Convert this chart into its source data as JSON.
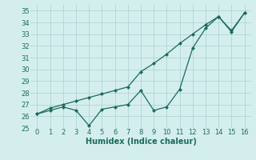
{
  "x": [
    0,
    1,
    2,
    3,
    4,
    5,
    6,
    7,
    8,
    9,
    10,
    11,
    12,
    13,
    14,
    15,
    16
  ],
  "line1_volatile": [
    26.2,
    26.5,
    26.8,
    26.5,
    25.2,
    26.6,
    26.8,
    27.0,
    28.2,
    26.5,
    26.8,
    28.3,
    31.8,
    33.5,
    34.5,
    33.2,
    34.8
  ],
  "line2_smooth": [
    26.2,
    26.7,
    27.0,
    27.3,
    27.6,
    27.9,
    28.2,
    28.5,
    29.8,
    30.5,
    31.3,
    32.2,
    33.0,
    33.8,
    34.5,
    33.3,
    34.8
  ],
  "color": "#1a6b5a",
  "bg_color": "#d4eeee",
  "grid_color": "#b0d4d4",
  "xlabel": "Humidex (Indice chaleur)",
  "ylim": [
    25,
    35.5
  ],
  "xlim": [
    -0.5,
    16.5
  ],
  "yticks": [
    25,
    26,
    27,
    28,
    29,
    30,
    31,
    32,
    33,
    34,
    35
  ],
  "xticks": [
    0,
    1,
    2,
    3,
    4,
    5,
    6,
    7,
    8,
    9,
    10,
    11,
    12,
    13,
    14,
    15,
    16
  ],
  "tick_fontsize": 6,
  "xlabel_fontsize": 7
}
